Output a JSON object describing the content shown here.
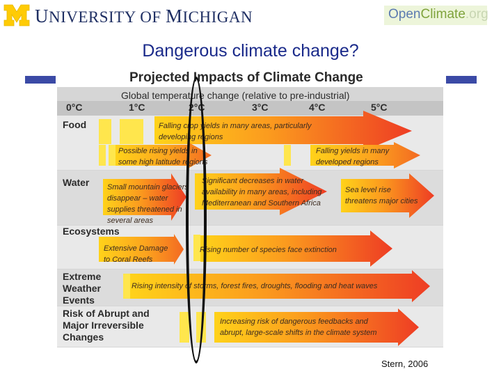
{
  "header": {
    "university_initial": "U",
    "university_rest": "NIVERSITY OF ",
    "michigan_initial": "M",
    "michigan_rest": "ICHIGAN",
    "oc_open": "Open",
    "oc_climate": "Climate",
    "oc_org": ".org"
  },
  "slide": {
    "title": "Dangerous climate change?",
    "source": "Stern, 2006"
  },
  "figure": {
    "title": "Projected Impacts of Climate Change",
    "subtitle": "Global temperature change (relative to pre-industrial)",
    "temps": [
      "0°C",
      "1°C",
      "2°C",
      "3°C",
      "4°C",
      "5°C"
    ],
    "categories": {
      "food": "Food",
      "water": "Water",
      "ecosystems": "Ecosystems",
      "extreme": [
        "Extreme",
        "Weather",
        "Events"
      ],
      "abrupt": [
        "Risk of Abrupt and",
        "Major Irreversible",
        "Changes"
      ]
    },
    "impacts": {
      "food_1": [
        "Falling crop yields in many areas, particularly",
        "developing regions"
      ],
      "food_2": [
        "Possible rising yields in",
        "some high latitude regions"
      ],
      "food_3": [
        "Falling yields in many",
        "developed regions"
      ],
      "water_1": [
        "Small mountain glaciers",
        "disappear – water",
        "supplies threatened in",
        "several areas"
      ],
      "water_2": [
        "Significant decreases in water",
        "availability in many areas, including",
        "Mediterranean and Southern Africa"
      ],
      "water_3": [
        "Sea level rise",
        "threatens major cities"
      ],
      "eco_1": [
        "Extensive Damage",
        "to Coral Reefs"
      ],
      "eco_2": "Rising number of species face extinction",
      "extreme_1": "Rising intensity of storms, forest fires, droughts, flooding and heat waves",
      "abrupt_1": [
        "Increasing risk of dangerous feedbacks and",
        "abrupt, large-scale shifts in the climate system"
      ]
    }
  },
  "colors": {
    "brand_blue": "#3b4aa6",
    "arrow_red": "#f0502a",
    "arrow_yellow": "#ffd21a",
    "panel_gray": "#d6d6d6"
  }
}
